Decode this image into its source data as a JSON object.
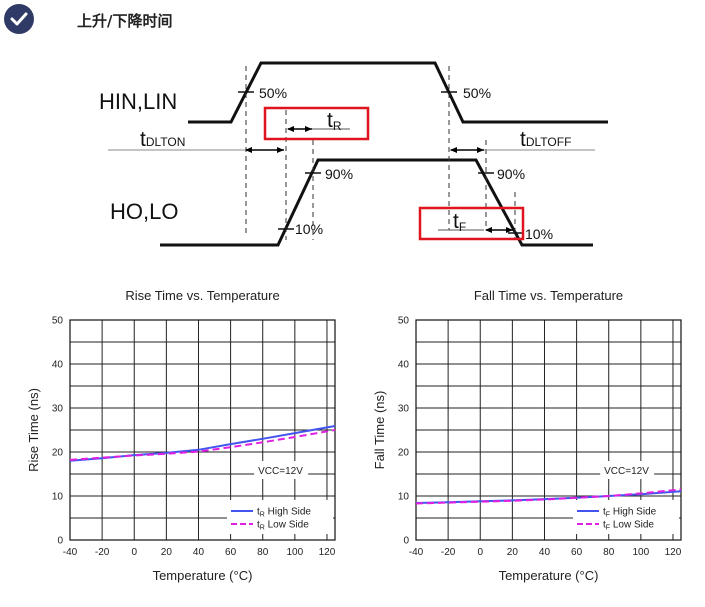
{
  "header": {
    "title": "上升/下降时间",
    "icon": "check-circle-icon",
    "accent": "#2f3b66"
  },
  "timing_diagram": {
    "input_label": "HIN,LIN",
    "output_label": "HO,LO",
    "pct_50_rise": "50%",
    "pct_50_fall": "50%",
    "pct_90_rise": "90%",
    "pct_10_rise": "10%",
    "pct_90_fall": "90%",
    "pct_10_fall": "10%",
    "t_main": "t",
    "tdlton_sub": "DLTON",
    "tdltoff_sub": "DLTOFF",
    "tr_sub": "R",
    "tf_sub": "F",
    "highlight_color": "#e0141e"
  },
  "chart_data": [
    {
      "type": "line",
      "title": "Rise Time vs. Temperature",
      "xlabel": "Temperature (°C)",
      "ylabel": "Rise Time (ns)",
      "xlim": [
        -40,
        125
      ],
      "ylim": [
        0,
        50
      ],
      "xticks": [
        -40,
        -20,
        0,
        20,
        40,
        60,
        80,
        100,
        120
      ],
      "yticks": [
        0,
        10,
        20,
        30,
        40,
        50
      ],
      "grid": true,
      "annotation": "VCC=12V",
      "legend_placement": "bottom-right",
      "legend": [
        {
          "prefix": "t",
          "sub": "R",
          "suffix": " High Side",
          "color": "#4455ee",
          "dash": "solid"
        },
        {
          "prefix": "t",
          "sub": "R",
          "suffix": " Low Side",
          "color": "#e020e0",
          "dash": "dashed"
        }
      ],
      "series": [
        {
          "name": "tR High Side",
          "color": "#4455ee",
          "dash": "solid",
          "x": [
            -40,
            -20,
            0,
            20,
            40,
            60,
            80,
            100,
            125
          ],
          "y": [
            18.0,
            18.6,
            19.3,
            19.8,
            20.5,
            21.8,
            23.0,
            24.3,
            25.9
          ]
        },
        {
          "name": "tR Low Side",
          "color": "#e020e0",
          "dash": "dashed",
          "x": [
            -40,
            -20,
            0,
            20,
            40,
            60,
            80,
            100,
            125
          ],
          "y": [
            18.2,
            18.7,
            19.2,
            19.6,
            20.1,
            21.1,
            22.2,
            23.4,
            25.0
          ]
        }
      ]
    },
    {
      "type": "line",
      "title": "Fall Time vs. Temperature",
      "xlabel": "Temperature (°C)",
      "ylabel": "Fall Time (ns)",
      "xlim": [
        -40,
        125
      ],
      "ylim": [
        0,
        50
      ],
      "xticks": [
        -40,
        -20,
        0,
        20,
        40,
        60,
        80,
        100,
        120
      ],
      "yticks": [
        0,
        10,
        20,
        30,
        40,
        50
      ],
      "grid": true,
      "annotation": "VCC=12V",
      "legend_placement": "bottom-right",
      "legend": [
        {
          "prefix": "t",
          "sub": "F",
          "suffix": " High Side",
          "color": "#4455ee",
          "dash": "solid"
        },
        {
          "prefix": "t",
          "sub": "F",
          "suffix": " Low Side",
          "color": "#e020e0",
          "dash": "dashed"
        }
      ],
      "series": [
        {
          "name": "tF High Side",
          "color": "#4455ee",
          "dash": "solid",
          "x": [
            -40,
            -20,
            0,
            20,
            40,
            60,
            80,
            100,
            125
          ],
          "y": [
            8.4,
            8.6,
            8.8,
            9.0,
            9.3,
            9.6,
            10.0,
            10.4,
            11.1
          ]
        },
        {
          "name": "tF Low Side",
          "color": "#e020e0",
          "dash": "dashed",
          "x": [
            -40,
            -20,
            0,
            20,
            40,
            60,
            80,
            100,
            125
          ],
          "y": [
            8.3,
            8.5,
            8.7,
            8.9,
            9.2,
            9.6,
            10.0,
            10.6,
            11.5
          ]
        }
      ]
    }
  ]
}
